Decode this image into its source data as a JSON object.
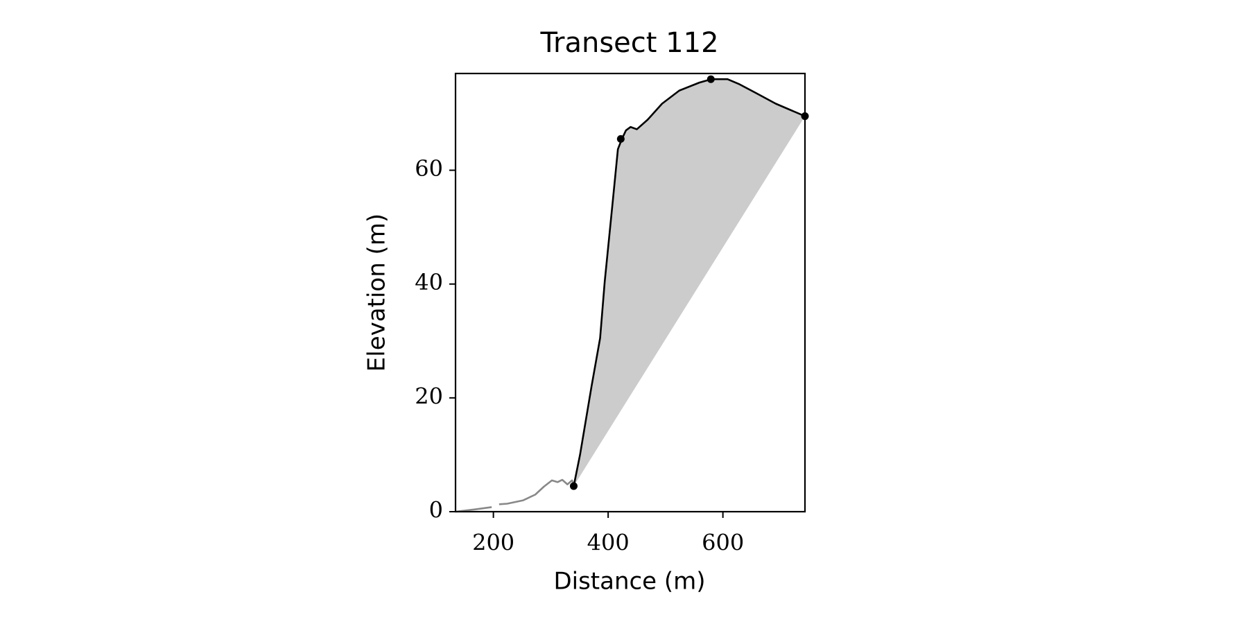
{
  "chart_data": {
    "type": "line",
    "title": "Transect 112",
    "x_label": "Distance (m)",
    "y_label": "Elevation (m)",
    "xlim": [
      134,
      743
    ],
    "ylim": [
      0,
      77
    ],
    "xticks": [
      200,
      400,
      600
    ],
    "yticks": [
      0,
      20,
      40,
      60
    ],
    "series": [
      {
        "color": "#888888",
        "x": [
          134,
          168,
          197,
          204,
          210,
          224,
          252,
          273,
          288,
          302,
          312,
          320,
          329,
          337,
          341
        ],
        "values": [
          0,
          0.4,
          0.8,
          null,
          1.3,
          1.4,
          2,
          3,
          4.4,
          5.5,
          5.2,
          5.6,
          4.8,
          5.5,
          4.6
        ]
      },
      {
        "color": "#000000",
        "fill_color": "#cccccc",
        "x": [
          340,
          351,
          371,
          386,
          394,
          408,
          417,
          424,
          431,
          439,
          450,
          469,
          494,
          524,
          559,
          580,
          608,
          629,
          657,
          692,
          743
        ],
        "values": [
          4.5,
          10,
          22,
          30.5,
          40.4,
          54.5,
          63.7,
          65.5,
          67,
          67.6,
          67.2,
          68.9,
          71.7,
          74,
          75.4,
          76,
          76,
          75.1,
          73.6,
          71.7,
          69.5
        ]
      },
      {
        "type": "scatter",
        "color": "#000000",
        "x": [
          340,
          422,
          579,
          743
        ],
        "values": [
          4.5,
          65.5,
          76,
          69.5
        ]
      }
    ]
  }
}
